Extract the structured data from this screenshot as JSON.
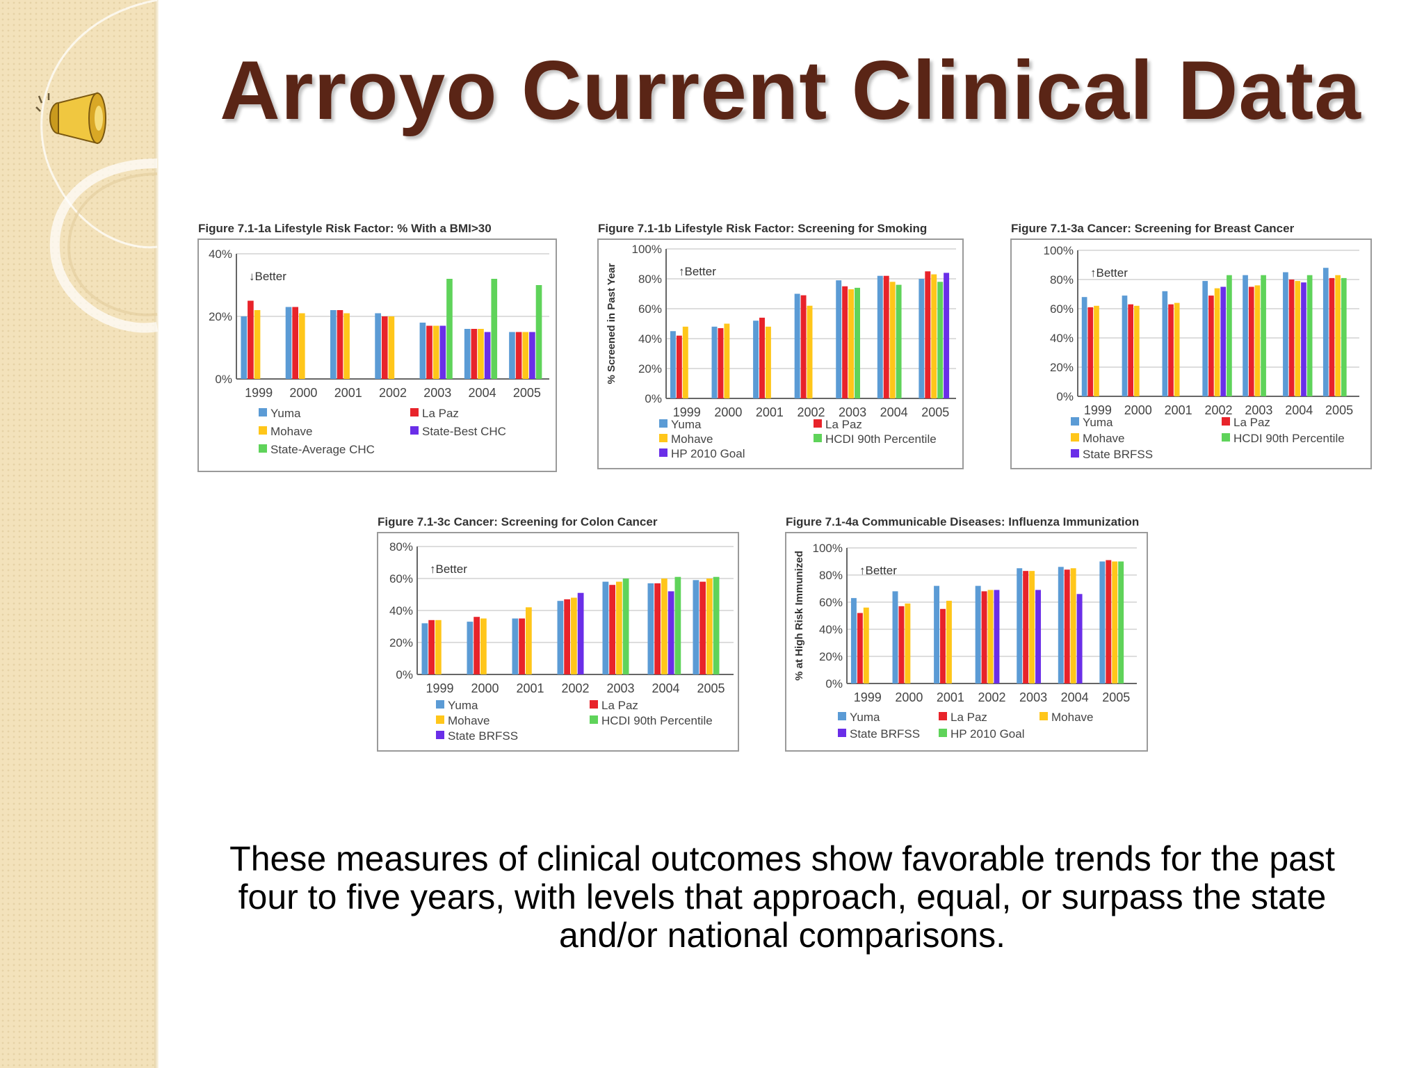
{
  "slide": {
    "title": "Arroyo Current Clinical Data",
    "caption": "These measures of clinical outcomes show favorable trends for the past four to five years, with levels that approach, equal, or surpass the state and/or national comparisons."
  },
  "colors": {
    "title": "#5a2516",
    "Yuma": "#5b9bd5",
    "La Paz": "#e8232a",
    "Mohave": "#ffc61a",
    "State-Best CHC": "#6a2ee8",
    "State BRFSS": "#6a2ee8",
    "HP 2010 Goal": "#6a2ee8",
    "State-Average CHC": "#5fd35a",
    "HCDI 90th Percentile": "#5fd35a",
    "HP 2010 Goal (green)": "#5fd35a"
  },
  "icons": {
    "sound": "speaker-icon"
  },
  "chart_data": [
    {
      "type": "bar",
      "title": "Figure 7.1-1a  Lifestyle Risk Factor: % With a BMI>30",
      "annotation": "↓Better",
      "ylabel": "",
      "ylim": [
        0,
        40
      ],
      "yticks": [
        "0%",
        "20%",
        "40%"
      ],
      "categories": [
        "1999",
        "2000",
        "2001",
        "2002",
        "2003",
        "2004",
        "2005"
      ],
      "series": [
        {
          "name": "Yuma",
          "values": [
            20,
            23,
            22,
            21,
            18,
            16,
            15
          ]
        },
        {
          "name": "La Paz",
          "values": [
            25,
            23,
            22,
            20,
            17,
            16,
            15
          ]
        },
        {
          "name": "Mohave",
          "values": [
            22,
            21,
            21,
            20,
            17,
            16,
            15
          ]
        },
        {
          "name": "State-Best CHC",
          "values": [
            null,
            null,
            null,
            null,
            17,
            15,
            15
          ]
        },
        {
          "name": "State-Average CHC",
          "values": [
            null,
            null,
            null,
            null,
            32,
            32,
            30
          ]
        }
      ],
      "legend": [
        "Yuma",
        "La Paz",
        "Mohave",
        "State-Best CHC",
        "State-Average CHC"
      ]
    },
    {
      "type": "bar",
      "title": "Figure 7.1-1b  Lifestyle Risk Factor: Screening for Smoking",
      "annotation": "↑Better",
      "ylabel": "% Screened in Past Year",
      "ylim": [
        0,
        100
      ],
      "yticks": [
        "0%",
        "20%",
        "40%",
        "60%",
        "80%",
        "100%"
      ],
      "categories": [
        "1999",
        "2000",
        "2001",
        "2002",
        "2003",
        "2004",
        "2005"
      ],
      "series": [
        {
          "name": "Yuma",
          "values": [
            45,
            48,
            52,
            70,
            79,
            82,
            80
          ]
        },
        {
          "name": "La Paz",
          "values": [
            42,
            47,
            54,
            69,
            75,
            82,
            85
          ]
        },
        {
          "name": "Mohave",
          "values": [
            48,
            50,
            48,
            62,
            73,
            78,
            83
          ]
        },
        {
          "name": "HCDI 90th Percentile",
          "values": [
            null,
            null,
            null,
            null,
            74,
            76,
            78
          ]
        },
        {
          "name": "HP 2010 Goal",
          "values": [
            null,
            null,
            null,
            null,
            null,
            null,
            84
          ]
        }
      ],
      "legend": [
        "Yuma",
        "La Paz",
        "Mohave",
        "HCDI 90th Percentile",
        "HP 2010 Goal"
      ]
    },
    {
      "type": "bar",
      "title": "Figure 7.1-3a  Cancer: Screening for Breast Cancer",
      "annotation": "↑Better",
      "ylabel": "",
      "ylim": [
        0,
        100
      ],
      "yticks": [
        "0%",
        "20%",
        "40%",
        "60%",
        "80%",
        "100%"
      ],
      "categories": [
        "1999",
        "2000",
        "2001",
        "2002",
        "2003",
        "2004",
        "2005"
      ],
      "series": [
        {
          "name": "Yuma",
          "values": [
            68,
            69,
            72,
            79,
            83,
            85,
            88
          ]
        },
        {
          "name": "La Paz",
          "values": [
            61,
            63,
            63,
            69,
            75,
            80,
            81
          ]
        },
        {
          "name": "Mohave",
          "values": [
            62,
            62,
            64,
            74,
            76,
            79,
            83
          ]
        },
        {
          "name": "State BRFSS",
          "values": [
            null,
            null,
            null,
            75,
            null,
            78,
            null
          ]
        },
        {
          "name": "HCDI 90th Percentile",
          "values": [
            null,
            null,
            null,
            83,
            83,
            83,
            81
          ]
        }
      ],
      "legend": [
        "Yuma",
        "La Paz",
        "Mohave",
        "HCDI 90th Percentile",
        "State BRFSS"
      ]
    },
    {
      "type": "bar",
      "title": "Figure 7.1-3c  Cancer: Screening for Colon Cancer",
      "annotation": "↑Better",
      "ylabel": "",
      "ylim": [
        0,
        80
      ],
      "yticks": [
        "0%",
        "20%",
        "40%",
        "60%",
        "80%"
      ],
      "categories": [
        "1999",
        "2000",
        "2001",
        "2002",
        "2003",
        "2004",
        "2005"
      ],
      "series": [
        {
          "name": "Yuma",
          "values": [
            32,
            33,
            35,
            46,
            58,
            57,
            59
          ]
        },
        {
          "name": "La Paz",
          "values": [
            34,
            36,
            35,
            47,
            56,
            57,
            58
          ]
        },
        {
          "name": "Mohave",
          "values": [
            34,
            35,
            42,
            48,
            58,
            60,
            60
          ]
        },
        {
          "name": "State BRFSS",
          "values": [
            null,
            null,
            null,
            51,
            null,
            52,
            null
          ]
        },
        {
          "name": "HCDI 90th Percentile",
          "values": [
            null,
            null,
            null,
            null,
            60,
            61,
            61
          ]
        }
      ],
      "legend": [
        "Yuma",
        "La Paz",
        "Mohave",
        "HCDI 90th Percentile",
        "State BRFSS"
      ]
    },
    {
      "type": "bar",
      "title": "Figure 7.1-4a  Communicable Diseases: Influenza Immunization",
      "annotation": "↑Better",
      "ylabel": "% at High Risk Immunized",
      "ylim": [
        0,
        100
      ],
      "yticks": [
        "0%",
        "20%",
        "40%",
        "60%",
        "80%",
        "100%"
      ],
      "categories": [
        "1999",
        "2000",
        "2001",
        "2002",
        "2003",
        "2004",
        "2005"
      ],
      "series": [
        {
          "name": "Yuma",
          "values": [
            63,
            68,
            72,
            72,
            85,
            86,
            90
          ]
        },
        {
          "name": "La Paz",
          "values": [
            52,
            57,
            55,
            68,
            83,
            84,
            91
          ]
        },
        {
          "name": "Mohave",
          "values": [
            56,
            59,
            61,
            69,
            83,
            85,
            90
          ]
        },
        {
          "name": "State BRFSS",
          "values": [
            null,
            null,
            null,
            69,
            69,
            66,
            null
          ]
        },
        {
          "name": "HP 2010 Goal",
          "values": [
            null,
            null,
            null,
            null,
            null,
            null,
            90
          ]
        }
      ],
      "legend": [
        "Yuma",
        "La Paz",
        "Mohave",
        "State BRFSS",
        "HP 2010 Goal"
      ]
    }
  ]
}
